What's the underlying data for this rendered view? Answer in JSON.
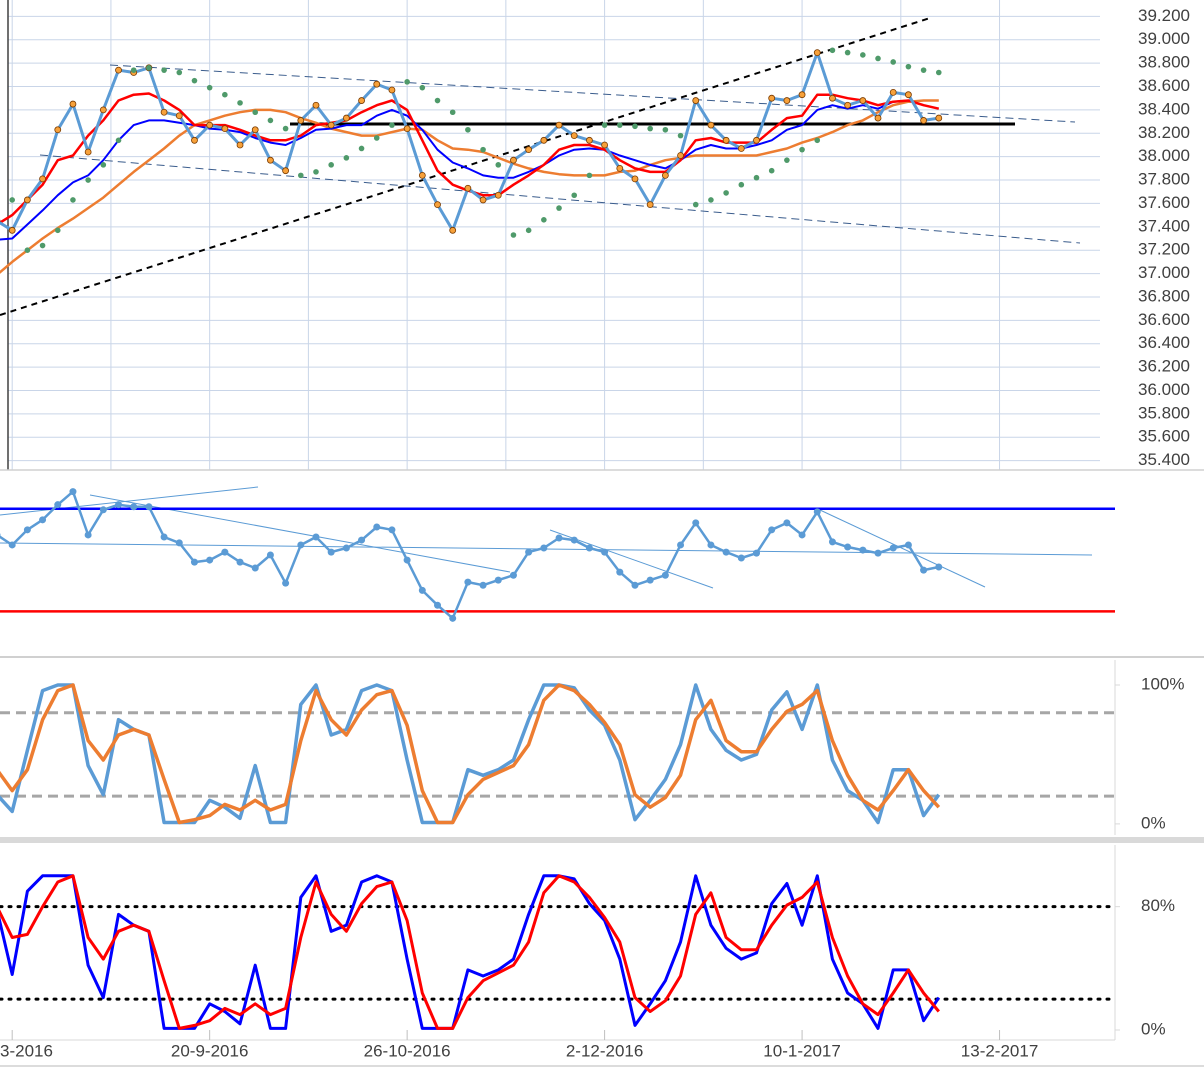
{
  "chart_data": [
    {
      "type": "line",
      "ylim": [
        35.32,
        39.34
      ],
      "grid": true,
      "yticks": [
        {
          "value": 35.4,
          "label": "35.400"
        },
        {
          "value": 35.6,
          "label": "35.600"
        },
        {
          "value": 35.8,
          "label": "35.800"
        },
        {
          "value": 36.0,
          "label": "36.000"
        },
        {
          "value": 36.2,
          "label": "36.200"
        },
        {
          "value": 36.4,
          "label": "36.400"
        },
        {
          "value": 36.6,
          "label": "36.600"
        },
        {
          "value": 36.8,
          "label": "36.800"
        },
        {
          "value": 37.0,
          "label": "37.000"
        },
        {
          "value": 37.2,
          "label": "37.200"
        },
        {
          "value": 37.4,
          "label": "37.400"
        },
        {
          "value": 37.6,
          "label": "37.600"
        },
        {
          "value": 37.8,
          "label": "37.800"
        },
        {
          "value": 38.0,
          "label": "38.000"
        },
        {
          "value": 38.2,
          "label": "38.200"
        },
        {
          "value": 38.4,
          "label": "38.400"
        },
        {
          "value": 38.6,
          "label": "38.600"
        },
        {
          "value": 38.8,
          "label": "38.800"
        },
        {
          "value": 39.0,
          "label": "39.000"
        },
        {
          "value": 39.2,
          "label": "39.200"
        }
      ],
      "series": [
        {
          "color": "#ed7d31",
          "line_width": 2.5,
          "values": [
            36.99,
            37.1,
            37.2,
            37.3,
            37.39,
            37.47,
            37.56,
            37.65,
            37.76,
            37.87,
            37.97,
            38.07,
            38.18,
            38.27,
            38.31,
            38.35,
            38.38,
            38.4,
            38.4,
            38.38,
            38.33,
            38.29,
            38.24,
            38.21,
            38.18,
            38.18,
            38.21,
            38.24,
            38.23,
            38.14,
            38.07,
            38.06,
            38.04,
            37.99,
            37.94,
            37.9,
            37.87,
            37.85,
            37.84,
            37.84,
            37.84,
            37.87,
            37.88,
            37.93,
            37.97,
            37.99,
            38.01,
            38.01,
            38.01,
            38.01,
            38.01,
            38.04,
            38.07,
            38.12,
            38.16,
            38.21,
            38.27,
            38.31,
            38.38,
            38.44,
            38.47,
            38.48,
            38.48,
            null,
            null,
            null,
            null
          ]
        },
        {
          "color": "#0000ff",
          "line_width": 2,
          "values": [
            37.29,
            37.3,
            37.42,
            37.54,
            37.67,
            37.78,
            37.84,
            37.97,
            38.14,
            38.27,
            38.31,
            38.31,
            38.29,
            38.27,
            38.24,
            38.23,
            38.21,
            38.16,
            38.12,
            38.1,
            38.16,
            38.23,
            38.24,
            38.27,
            38.27,
            38.35,
            38.4,
            38.35,
            38.23,
            38.06,
            37.95,
            37.9,
            37.84,
            37.82,
            37.82,
            37.87,
            37.93,
            38.01,
            38.06,
            38.07,
            38.06,
            38.01,
            37.97,
            37.93,
            37.9,
            37.97,
            38.06,
            38.1,
            38.07,
            38.07,
            38.1,
            38.14,
            38.23,
            38.27,
            38.4,
            38.44,
            38.41,
            38.44,
            38.41,
            38.47,
            38.48,
            38.44,
            null,
            null,
            null,
            null,
            null
          ]
        },
        {
          "color": "#ff0000",
          "line_width": 2.5,
          "values": [
            37.42,
            37.5,
            37.63,
            37.76,
            37.97,
            38.01,
            38.18,
            38.31,
            38.48,
            38.53,
            38.54,
            38.48,
            38.4,
            38.27,
            38.27,
            38.27,
            38.23,
            38.18,
            38.14,
            38.14,
            38.18,
            38.27,
            38.29,
            38.31,
            38.38,
            38.44,
            38.48,
            38.4,
            38.14,
            37.88,
            37.76,
            37.71,
            37.67,
            37.67,
            37.76,
            37.84,
            37.93,
            38.06,
            38.1,
            38.1,
            38.06,
            37.97,
            37.9,
            37.87,
            37.87,
            37.97,
            38.14,
            38.16,
            38.12,
            38.12,
            38.12,
            38.23,
            38.33,
            38.35,
            38.53,
            38.53,
            38.5,
            38.48,
            38.44,
            38.47,
            38.48,
            38.44,
            38.41,
            null,
            null,
            null,
            null
          ]
        },
        {
          "color": "#5b9bd5",
          "line_width": 3,
          "markers": true,
          "marker_color": "#f7a13a",
          "values": [
            37.45,
            37.37,
            37.63,
            37.81,
            38.23,
            38.45,
            38.04,
            38.4,
            38.74,
            38.72,
            38.76,
            38.38,
            38.35,
            38.14,
            38.27,
            38.24,
            38.1,
            38.23,
            37.97,
            37.88,
            38.31,
            38.44,
            38.27,
            38.33,
            38.48,
            38.62,
            38.57,
            38.24,
            37.84,
            37.59,
            37.37,
            37.73,
            37.63,
            37.67,
            37.97,
            38.06,
            38.14,
            38.27,
            38.18,
            38.14,
            38.1,
            37.9,
            37.81,
            37.59,
            37.84,
            38.01,
            38.48,
            38.27,
            38.14,
            38.07,
            38.14,
            38.5,
            38.48,
            38.53,
            38.89,
            38.5,
            38.44,
            38.48,
            38.33,
            38.55,
            38.53,
            38.31,
            38.33,
            null,
            null,
            null,
            null
          ]
        },
        {
          "color": "#4f9a6a",
          "style": "dots",
          "values": [
            37.65,
            37.63,
            37.2,
            37.24,
            37.37,
            37.63,
            37.8,
            37.93,
            38.14,
            38.74,
            38.76,
            38.74,
            38.72,
            38.65,
            38.59,
            38.53,
            38.46,
            38.38,
            38.31,
            38.24,
            37.84,
            37.87,
            37.93,
            37.99,
            38.07,
            38.16,
            38.27,
            38.64,
            38.59,
            38.48,
            38.38,
            38.23,
            38.06,
            37.93,
            37.33,
            37.37,
            37.46,
            37.56,
            37.67,
            37.84,
            38.27,
            38.27,
            38.26,
            38.24,
            38.23,
            38.18,
            37.59,
            37.63,
            37.69,
            37.76,
            37.82,
            37.88,
            37.97,
            38.06,
            38.14,
            38.91,
            38.89,
            38.87,
            38.84,
            38.81,
            38.77,
            38.74,
            38.72,
            null,
            null,
            null,
            null
          ]
        }
      ]
    },
    {
      "type": "line",
      "ylim": [
        13,
        82
      ],
      "hlines": [
        {
          "value": 70,
          "color": "#0000ff",
          "style": "solid"
        },
        {
          "value": 30,
          "color": "#ff0000",
          "style": "solid"
        }
      ],
      "series": [
        {
          "color": "#5b9bd5",
          "line_width": 2.5,
          "markers": true,
          "marker_color": "#5b9bd5",
          "values": [
            59.8,
            55.9,
            61.8,
            65.7,
            71.6,
            76.7,
            59.8,
            69.6,
            71.6,
            70.8,
            70.8,
            59.0,
            56.7,
            49.2,
            50.0,
            53.1,
            49.2,
            46.9,
            52.0,
            41.0,
            55.9,
            59.0,
            53.1,
            54.7,
            57.8,
            62.9,
            61.8,
            50.0,
            38.2,
            32.4,
            27.3,
            41.4,
            40.2,
            42.2,
            44.1,
            53.1,
            54.7,
            58.6,
            57.8,
            54.7,
            53.1,
            45.3,
            40.2,
            42.2,
            44.1,
            55.9,
            64.5,
            55.9,
            53.1,
            50.8,
            52.7,
            61.8,
            64.5,
            59.8,
            68.8,
            57.1,
            55.1,
            53.9,
            52.7,
            54.7,
            55.9,
            46.1,
            47.3,
            null,
            null,
            null,
            null
          ]
        }
      ]
    },
    {
      "type": "line",
      "ylim": [
        -8,
        118
      ],
      "yticks": [
        {
          "value": 100,
          "label": "100%"
        },
        {
          "value": 0,
          "label": "0%"
        }
      ],
      "hlines": [
        {
          "value": 80,
          "color": "#a6a6a6",
          "style": "dashed"
        },
        {
          "value": 20,
          "color": "#a6a6a6",
          "style": "dashed"
        }
      ],
      "series": [
        {
          "color": "#5b9bd5",
          "line_width": 3.5,
          "values": [
            21,
            9,
            53,
            96,
            100,
            100,
            42,
            21,
            75,
            68,
            64,
            1,
            1,
            1,
            17,
            12,
            4,
            42,
            1,
            1,
            86,
            100,
            64,
            68,
            96,
            100,
            96,
            46,
            1,
            1,
            1,
            39,
            35,
            39,
            46,
            75,
            100,
            100,
            98,
            82,
            71,
            46,
            3,
            17,
            32,
            57,
            100,
            68,
            53,
            46,
            50,
            82,
            95,
            68,
            100,
            46,
            24,
            17,
            1,
            39,
            39,
            6,
            21,
            null,
            null,
            null,
            null
          ]
        },
        {
          "color": "#ed7d31",
          "line_width": 3.5,
          "values": [
            39,
            24,
            39,
            75,
            96,
            100,
            60,
            46,
            64,
            68,
            64,
            32,
            1,
            3,
            6,
            14,
            10,
            17,
            10,
            14,
            60,
            96,
            75,
            64,
            82,
            93,
            96,
            71,
            24,
            1,
            1,
            21,
            32,
            37,
            42,
            57,
            89,
            100,
            96,
            86,
            73,
            57,
            21,
            12,
            19,
            35,
            75,
            89,
            60,
            52,
            52,
            68,
            81,
            86,
            96,
            60,
            35,
            17,
            10,
            24,
            39,
            24,
            12,
            null,
            null,
            null,
            null
          ]
        }
      ]
    },
    {
      "type": "line",
      "ylim": [
        -6.5,
        120
      ],
      "yticks": [
        {
          "value": 80,
          "label": "80%"
        },
        {
          "value": 0,
          "label": "0%"
        }
      ],
      "hlines": [
        {
          "value": 80,
          "color": "#000000",
          "style": "dotted"
        },
        {
          "value": 20,
          "color": "#000000",
          "style": "dotted"
        }
      ],
      "categories": [
        null,
        "3-2016",
        null,
        null,
        null,
        null,
        null,
        null,
        null,
        null,
        null,
        null,
        null,
        null,
        "20-9-2016",
        null,
        null,
        null,
        null,
        null,
        null,
        null,
        null,
        null,
        null,
        null,
        null,
        "26-10-2016",
        null,
        null,
        null,
        null,
        null,
        null,
        null,
        null,
        null,
        null,
        null,
        null,
        "2-12-2016",
        null,
        null,
        null,
        null,
        null,
        null,
        null,
        null,
        null,
        null,
        null,
        null,
        "10-1-2017",
        null,
        null,
        null,
        null,
        null,
        null,
        null,
        null,
        null,
        null,
        null,
        null,
        "13-2-2017"
      ],
      "series": [
        {
          "color": "#0000ff",
          "line_width": 3,
          "values": [
            78,
            36,
            90,
            100,
            100,
            100,
            42,
            21,
            75,
            68,
            64,
            1,
            1,
            1,
            17,
            12,
            4,
            42,
            1,
            1,
            86,
            100,
            64,
            68,
            96,
            100,
            96,
            46,
            1,
            1,
            1,
            39,
            35,
            39,
            46,
            75,
            100,
            100,
            98,
            82,
            71,
            46,
            3,
            17,
            32,
            57,
            100,
            68,
            53,
            46,
            50,
            82,
            95,
            68,
            100,
            46,
            24,
            17,
            1,
            39,
            39,
            6,
            21,
            null,
            null,
            null,
            null
          ]
        },
        {
          "color": "#ff0000",
          "line_width": 3,
          "values": [
            80,
            60,
            62,
            80,
            96,
            100,
            60,
            46,
            64,
            68,
            64,
            32,
            1,
            3,
            6,
            14,
            10,
            17,
            10,
            14,
            60,
            96,
            75,
            64,
            82,
            93,
            96,
            71,
            24,
            1,
            1,
            21,
            32,
            37,
            42,
            57,
            89,
            100,
            96,
            86,
            73,
            57,
            21,
            12,
            19,
            35,
            75,
            89,
            60,
            52,
            52,
            68,
            81,
            86,
            96,
            60,
            35,
            17,
            10,
            24,
            39,
            24,
            12,
            null,
            null,
            null,
            null
          ]
        }
      ]
    }
  ]
}
